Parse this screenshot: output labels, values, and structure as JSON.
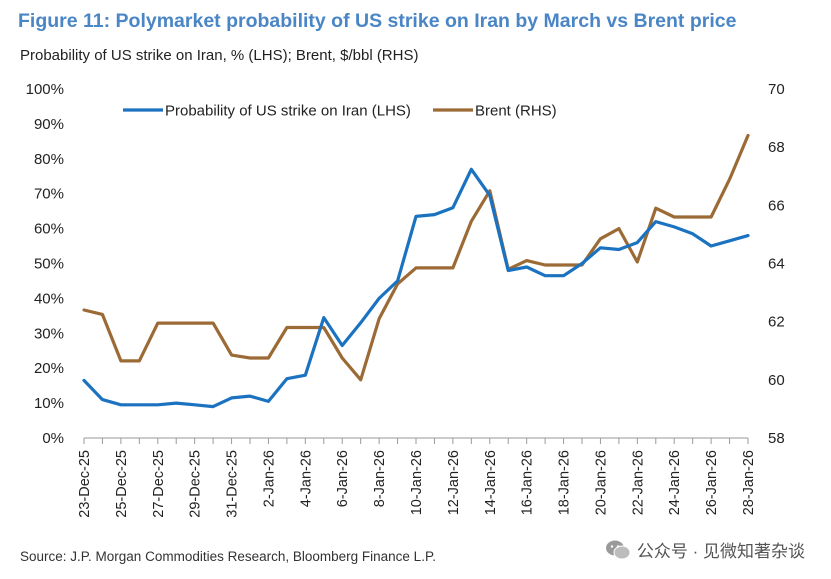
{
  "title": "Figure 11: Polymarket probability of US strike on Iran by March vs Brent price",
  "subtitle": "Probability of US strike on Iran, % (LHS); Brent, $/bbl (RHS)",
  "source": "Source: J.P. Morgan Commodities Research, Bloomberg Finance L.P.",
  "watermark": "公众号 · 见微知著杂谈",
  "colors": {
    "title": "#4a86c5",
    "probability": "#1b72c0",
    "brent": "#9b6a35"
  },
  "chart_data": {
    "type": "line",
    "title": "Figure 11: Polymarket probability of US strike on Iran by March vs Brent price",
    "x": [
      "23-Dec-25",
      "24-Dec-25",
      "25-Dec-25",
      "26-Dec-25",
      "27-Dec-25",
      "28-Dec-25",
      "29-Dec-25",
      "30-Dec-25",
      "31-Dec-25",
      "1-Jan-26",
      "2-Jan-26",
      "3-Jan-26",
      "4-Jan-26",
      "5-Jan-26",
      "6-Jan-26",
      "7-Jan-26",
      "8-Jan-26",
      "9-Jan-26",
      "10-Jan-26",
      "11-Jan-26",
      "12-Jan-26",
      "13-Jan-26",
      "14-Jan-26",
      "15-Jan-26",
      "16-Jan-26",
      "17-Jan-26",
      "18-Jan-26",
      "19-Jan-26",
      "20-Jan-26",
      "21-Jan-26",
      "22-Jan-26",
      "23-Jan-26",
      "24-Jan-26",
      "25-Jan-26",
      "26-Jan-26",
      "27-Jan-26",
      "28-Jan-26"
    ],
    "x_tick_labels": [
      "23-Dec-25",
      "25-Dec-25",
      "27-Dec-25",
      "29-Dec-25",
      "31-Dec-25",
      "2-Jan-26",
      "4-Jan-26",
      "6-Jan-26",
      "8-Jan-26",
      "10-Jan-26",
      "12-Jan-26",
      "14-Jan-26",
      "16-Jan-26",
      "18-Jan-26",
      "20-Jan-26",
      "22-Jan-26",
      "24-Jan-26",
      "26-Jan-26",
      "28-Jan-26"
    ],
    "series": [
      {
        "name": "Probability of US strike on Iran (LHS)",
        "axis": "left",
        "values": [
          16.5,
          11,
          9.5,
          9.5,
          9.5,
          10,
          9.5,
          9,
          11.5,
          12,
          10.5,
          17,
          18,
          34.5,
          26.5,
          33,
          40,
          45,
          63.5,
          64,
          66,
          77,
          69.5,
          48,
          49,
          46.5,
          46.5,
          50,
          54.5,
          54,
          56,
          62,
          60.5,
          58.5,
          55,
          56.5,
          58
        ]
      },
      {
        "name": "Brent (RHS)",
        "axis": "right",
        "values": [
          62.4,
          62.25,
          60.65,
          60.65,
          61.95,
          61.95,
          61.95,
          61.95,
          60.85,
          60.75,
          60.75,
          61.8,
          61.8,
          61.8,
          60.75,
          60,
          62.1,
          63.3,
          63.85,
          63.85,
          63.85,
          65.45,
          66.5,
          63.8,
          64.1,
          63.95,
          63.95,
          63.95,
          64.85,
          65.2,
          64.05,
          65.9,
          65.6,
          65.6,
          65.6,
          66.9,
          68.4
        ]
      }
    ],
    "y_left": {
      "min": 0,
      "max": 100,
      "ticks": [
        "0%",
        "10%",
        "20%",
        "30%",
        "40%",
        "50%",
        "60%",
        "70%",
        "80%",
        "90%",
        "100%"
      ]
    },
    "y_right": {
      "min": 58,
      "max": 70,
      "ticks": [
        "58",
        "60",
        "62",
        "64",
        "66",
        "68",
        "70"
      ]
    },
    "grid": false,
    "legend": "top"
  }
}
